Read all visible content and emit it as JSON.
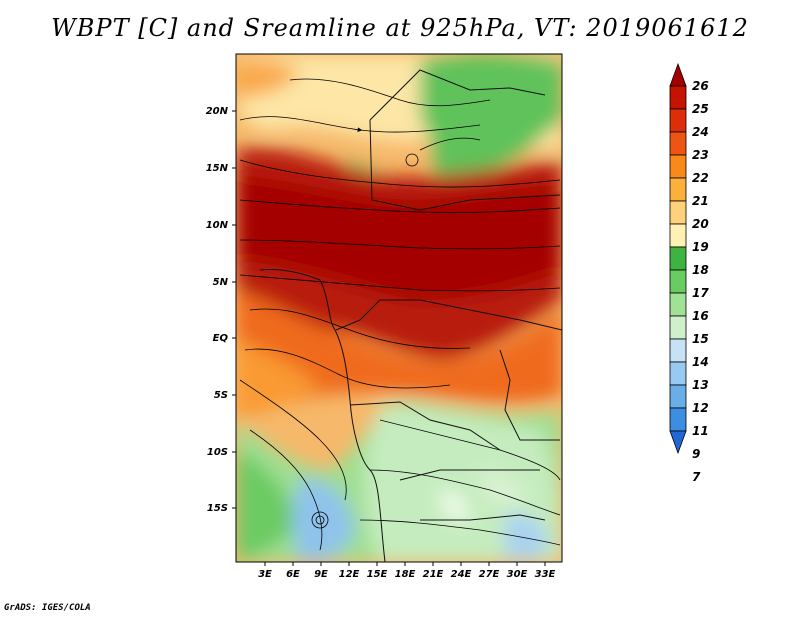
{
  "title": "WBPT [C] and Sreamline at 925hPa, VT: 2019061612",
  "credit": "GrADS: IGES/COLA",
  "map": {
    "lat_labels": [
      "20N",
      "15N",
      "10N",
      "5N",
      "EQ",
      "5S",
      "10S",
      "15S"
    ],
    "lon_labels": [
      "3E",
      "6E",
      "9E",
      "12E",
      "15E",
      "18E",
      "21E",
      "24E",
      "27E",
      "30E",
      "33E"
    ]
  },
  "colorbar": {
    "levels": [
      "26",
      "25",
      "24",
      "23",
      "22",
      "21",
      "20",
      "19",
      "18",
      "17",
      "16",
      "15",
      "14",
      "13",
      "12",
      "11",
      "9",
      "7"
    ],
    "colors": [
      "#a50000",
      "#c41400",
      "#dd2e0a",
      "#ef5512",
      "#f98a1a",
      "#fbb03c",
      "#fdd27a",
      "#fff0b4",
      "#3fb33f",
      "#69cc62",
      "#a1e196",
      "#d0f0cb",
      "#c8e2f5",
      "#98c9f0",
      "#6aaee8",
      "#3d8ee0",
      "#2268d4"
    ]
  }
}
